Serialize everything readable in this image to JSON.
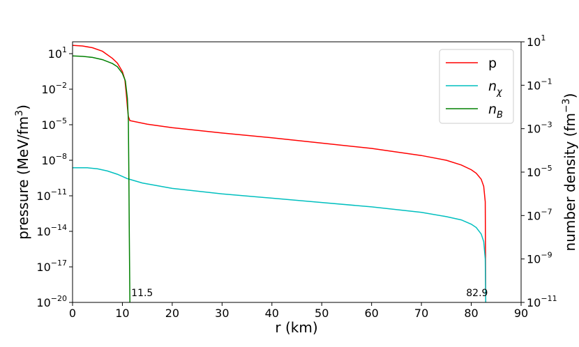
{
  "chart_data": {
    "type": "line",
    "title": "",
    "xlabel": "r (km)",
    "ylabel_left": "pressure (MeV/fm3)",
    "ylabel_right": "number density (fm−3)",
    "xlim": [
      0,
      90
    ],
    "ylim_left_log10": [
      -20,
      2
    ],
    "ylim_right_log10": [
      -11,
      1
    ],
    "x_ticks": [
      0,
      10,
      20,
      30,
      40,
      50,
      60,
      70,
      80,
      90
    ],
    "left_ticks_exp": [
      -20,
      -17,
      -14,
      -11,
      -8,
      -5,
      -2,
      1
    ],
    "right_ticks_exp": [
      -11,
      -9,
      -7,
      -5,
      -3,
      -1,
      1
    ],
    "grid": false,
    "legend_position": "top-right",
    "legend": [
      {
        "label": "p",
        "color": "#ff0000"
      },
      {
        "label": "nχ",
        "color": "#00bfbf"
      },
      {
        "label": "nB",
        "color": "#008000"
      }
    ],
    "series": [
      {
        "name": "p",
        "axis": "left",
        "color": "#ff0000",
        "x": [
          0,
          2,
          4,
          6,
          8,
          9,
          10,
          10.5,
          10.8,
          11,
          11.2,
          11.5,
          15,
          20,
          30,
          40,
          50,
          60,
          70,
          75,
          78,
          80,
          81,
          82,
          82.5,
          82.8,
          82.9
        ],
        "log10_y": [
          1.7,
          1.65,
          1.5,
          1.2,
          0.6,
          0.2,
          -0.5,
          -1.2,
          -2.5,
          -3.5,
          -4.3,
          -4.65,
          -4.95,
          -5.25,
          -5.7,
          -6.1,
          -6.55,
          -7.0,
          -7.6,
          -8.0,
          -8.4,
          -8.8,
          -9.1,
          -9.6,
          -10.2,
          -11.5,
          -20
        ]
      },
      {
        "name": "nχ",
        "axis": "right",
        "color": "#00bfbf",
        "x": [
          0,
          3,
          5,
          7,
          9,
          11,
          14,
          20,
          30,
          40,
          50,
          60,
          70,
          75,
          78,
          80,
          81,
          82,
          82.5,
          82.8,
          82.9
        ],
        "log10_y": [
          -4.8,
          -4.8,
          -4.85,
          -4.95,
          -5.1,
          -5.3,
          -5.5,
          -5.75,
          -6.0,
          -6.2,
          -6.4,
          -6.6,
          -6.85,
          -7.05,
          -7.2,
          -7.4,
          -7.55,
          -7.85,
          -8.2,
          -9.0,
          -11
        ]
      },
      {
        "name": "nB",
        "axis": "right",
        "color": "#008000",
        "x": [
          0,
          2,
          4,
          6,
          8,
          9,
          10,
          10.6,
          11.0,
          11.2,
          11.3,
          11.4,
          11.5
        ],
        "log10_y": [
          0.35,
          0.33,
          0.28,
          0.18,
          0.0,
          -0.15,
          -0.45,
          -0.8,
          -1.6,
          -2.6,
          -5.0,
          -8.0,
          -11
        ]
      }
    ],
    "annotations": [
      {
        "text": "11.5",
        "x": 11.5
      },
      {
        "text": "82.9",
        "x": 82.9
      }
    ]
  }
}
